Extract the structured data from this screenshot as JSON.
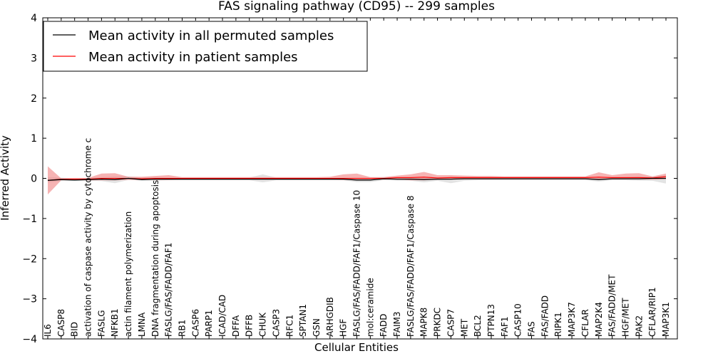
{
  "chart_data": {
    "type": "line",
    "title": "FAS signaling pathway (CD95) -- 299 samples",
    "xlabel": "Cellular Entities",
    "ylabel": "Inferred Activity",
    "ylim": [
      -4,
      4
    ],
    "yticks": [
      -4,
      -3,
      -2,
      -1,
      0,
      1,
      2,
      3,
      4
    ],
    "ytick_labels": [
      "−4",
      "−3",
      "−2",
      "−1",
      "0",
      "1",
      "2",
      "3",
      "4"
    ],
    "categories": [
      "IL6",
      "CASP8",
      "BID",
      "activation of caspase activity by cytochrome c",
      "FASLG",
      "NFKB1",
      "actin filament polymerization",
      "LMNA",
      "DNA fragmentation during apoptosis",
      "FASLG/FAS/FADD/FAF1",
      "RB1",
      "CASP6",
      "PARP1",
      "ICAD/CAD",
      "DFFA",
      "DFFB",
      "CHUK",
      "CASP3",
      "RFC1",
      "SPTAN1",
      "GSN",
      "ARHGDIB",
      "HGF",
      "FASLG/FAS/FADD/FAF1/Caspase 10",
      "mol:ceramide",
      "FADD",
      "FAIM3",
      "FASLG/FAS/FADD/FAF1/Caspase 8",
      "MAPK8",
      "PRKDC",
      "CASP7",
      "MET",
      "BCL2",
      "PTPN13",
      "FAF1",
      "CASP10",
      "FAS",
      "FAS/FADD",
      "RIPK1",
      "MAP3K7",
      "CFLAR",
      "MAP2K4",
      "FAS/FADD/MET",
      "HGF/MET",
      "PAK2",
      "CFLAR/RIP1",
      "MAP3K1"
    ],
    "series": [
      {
        "name": "Mean activity in all permuted samples",
        "color": "#000000",
        "band_color": "#c0c0c0",
        "values": [
          -0.05,
          -0.03,
          -0.04,
          -0.03,
          -0.02,
          -0.03,
          0.0,
          -0.03,
          -0.02,
          -0.02,
          -0.02,
          -0.02,
          -0.02,
          -0.02,
          -0.02,
          -0.02,
          -0.02,
          -0.02,
          -0.02,
          -0.02,
          -0.02,
          -0.02,
          -0.02,
          -0.04,
          -0.04,
          -0.01,
          -0.02,
          -0.02,
          -0.03,
          -0.02,
          -0.02,
          -0.01,
          -0.01,
          -0.01,
          -0.01,
          -0.01,
          -0.01,
          -0.01,
          -0.01,
          -0.01,
          -0.01,
          -0.03,
          -0.01,
          -0.01,
          -0.01,
          0.0,
          0.0
        ],
        "lower": [
          -0.1,
          -0.07,
          -0.06,
          -0.06,
          -0.07,
          -0.12,
          -0.04,
          -0.06,
          -0.06,
          -0.05,
          -0.05,
          -0.05,
          -0.05,
          -0.05,
          -0.05,
          -0.05,
          -0.1,
          -0.05,
          -0.05,
          -0.05,
          -0.05,
          -0.05,
          -0.05,
          -0.09,
          -0.09,
          -0.05,
          -0.06,
          -0.06,
          -0.1,
          -0.06,
          -0.12,
          -0.06,
          -0.05,
          -0.05,
          -0.05,
          -0.05,
          -0.05,
          -0.05,
          -0.05,
          -0.05,
          -0.05,
          -0.08,
          -0.05,
          -0.05,
          -0.06,
          -0.06,
          -0.13
        ],
        "upper": [
          0.03,
          0.02,
          0.0,
          0.01,
          0.03,
          0.05,
          0.05,
          0.02,
          0.03,
          0.02,
          0.02,
          0.02,
          0.02,
          0.02,
          0.02,
          0.02,
          0.1,
          0.02,
          0.02,
          0.02,
          0.02,
          0.02,
          0.02,
          0.02,
          0.02,
          0.03,
          0.03,
          0.03,
          0.05,
          0.03,
          0.05,
          0.03,
          0.03,
          0.03,
          0.03,
          0.03,
          0.03,
          0.03,
          0.03,
          0.03,
          0.03,
          0.03,
          0.03,
          0.03,
          0.05,
          0.04,
          0.08
        ]
      },
      {
        "name": "Mean activity in patient samples",
        "color": "#ff0000",
        "band_color": "#f08080",
        "values": [
          -0.05,
          -0.02,
          -0.02,
          -0.02,
          0.0,
          0.0,
          0.0,
          -0.01,
          0.0,
          0.0,
          0.0,
          0.0,
          0.0,
          0.0,
          0.0,
          0.0,
          0.0,
          0.0,
          0.0,
          0.0,
          0.0,
          0.0,
          0.0,
          0.0,
          0.0,
          0.0,
          0.02,
          0.02,
          0.03,
          0.01,
          0.02,
          0.02,
          0.02,
          0.02,
          0.02,
          0.02,
          0.02,
          0.02,
          0.02,
          0.02,
          0.02,
          0.03,
          0.02,
          0.02,
          0.02,
          0.01,
          0.04
        ],
        "lower": [
          -0.4,
          -0.05,
          -0.05,
          -0.05,
          -0.05,
          -0.05,
          -0.04,
          -0.04,
          -0.04,
          -0.04,
          -0.03,
          -0.03,
          -0.03,
          -0.03,
          -0.03,
          -0.03,
          -0.03,
          -0.03,
          -0.03,
          -0.03,
          -0.03,
          -0.03,
          -0.04,
          -0.05,
          -0.03,
          -0.03,
          -0.02,
          -0.05,
          -0.05,
          -0.03,
          -0.02,
          -0.02,
          -0.02,
          -0.02,
          -0.02,
          -0.02,
          -0.02,
          -0.02,
          -0.02,
          -0.02,
          -0.02,
          -0.03,
          -0.02,
          -0.02,
          -0.02,
          -0.03,
          -0.02
        ],
        "upper": [
          0.3,
          0.0,
          0.01,
          0.01,
          0.12,
          0.13,
          0.04,
          0.04,
          0.06,
          0.08,
          0.03,
          0.03,
          0.03,
          0.03,
          0.03,
          0.03,
          0.03,
          0.03,
          0.03,
          0.03,
          0.03,
          0.04,
          0.1,
          0.12,
          0.03,
          0.03,
          0.07,
          0.1,
          0.16,
          0.08,
          0.08,
          0.07,
          0.06,
          0.06,
          0.05,
          0.05,
          0.05,
          0.05,
          0.05,
          0.05,
          0.05,
          0.15,
          0.08,
          0.12,
          0.13,
          0.05,
          0.12
        ]
      }
    ],
    "legend_position": "top-left"
  }
}
